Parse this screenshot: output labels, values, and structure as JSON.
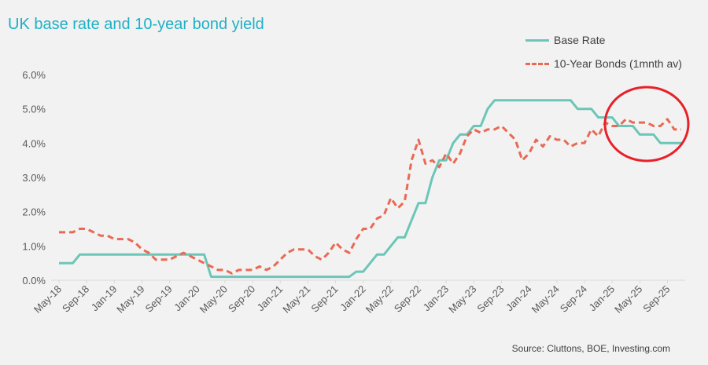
{
  "colors": {
    "base_rate": "#6cc6b7",
    "bonds": "#e86a54",
    "title": "#1fb0c6",
    "highlight": "#e8202a",
    "axis": "#d9d9d9",
    "text": "#595959"
  },
  "chart_data": {
    "type": "line",
    "title": "UK base rate and 10-year bond yield",
    "xlabel": "",
    "ylabel": "",
    "ylim": [
      0,
      6
    ],
    "y_ticks": [
      "0.0%",
      "1.0%",
      "2.0%",
      "3.0%",
      "4.0%",
      "5.0%",
      "6.0%"
    ],
    "x_ticks": [
      {
        "label": "May-18",
        "index": 0
      },
      {
        "label": "Sep-18",
        "index": 4
      },
      {
        "label": "Jan-19",
        "index": 8
      },
      {
        "label": "May-19",
        "index": 12
      },
      {
        "label": "Sep-19",
        "index": 16
      },
      {
        "label": "Jan-20",
        "index": 20
      },
      {
        "label": "May-20",
        "index": 24
      },
      {
        "label": "Sep-20",
        "index": 28
      },
      {
        "label": "Jan-21",
        "index": 32
      },
      {
        "label": "May-21",
        "index": 36
      },
      {
        "label": "Sep-21",
        "index": 40
      },
      {
        "label": "Jan-22",
        "index": 44
      },
      {
        "label": "May-22",
        "index": 48
      },
      {
        "label": "Sep-22",
        "index": 52
      },
      {
        "label": "Jan-23",
        "index": 56
      },
      {
        "label": "May-23",
        "index": 60
      },
      {
        "label": "Sep-23",
        "index": 64
      },
      {
        "label": "Jan-24",
        "index": 68
      },
      {
        "label": "May-24",
        "index": 72
      },
      {
        "label": "Sep-24",
        "index": 76
      },
      {
        "label": "Jan-25",
        "index": 80
      },
      {
        "label": "May-25",
        "index": 84
      },
      {
        "label": "Sep-25",
        "index": 88
      }
    ],
    "x_count": 91,
    "legend": "top-right",
    "grid": false,
    "series": [
      {
        "name": "Base Rate",
        "style": "solid",
        "values": [
          0.5,
          0.5,
          0.5,
          0.75,
          0.75,
          0.75,
          0.75,
          0.75,
          0.75,
          0.75,
          0.75,
          0.75,
          0.75,
          0.75,
          0.75,
          0.75,
          0.75,
          0.75,
          0.75,
          0.75,
          0.75,
          0.75,
          0.1,
          0.1,
          0.1,
          0.1,
          0.1,
          0.1,
          0.1,
          0.1,
          0.1,
          0.1,
          0.1,
          0.1,
          0.1,
          0.1,
          0.1,
          0.1,
          0.1,
          0.1,
          0.1,
          0.1,
          0.1,
          0.25,
          0.25,
          0.5,
          0.75,
          0.75,
          1.0,
          1.25,
          1.25,
          1.75,
          2.25,
          2.25,
          3.0,
          3.5,
          3.5,
          4.0,
          4.25,
          4.25,
          4.5,
          4.5,
          5.0,
          5.25,
          5.25,
          5.25,
          5.25,
          5.25,
          5.25,
          5.25,
          5.25,
          5.25,
          5.25,
          5.25,
          5.25,
          5.0,
          5.0,
          5.0,
          4.75,
          4.75,
          4.75,
          4.5,
          4.5,
          4.5,
          4.25,
          4.25,
          4.25,
          4.0,
          4.0,
          4.0,
          4.0
        ]
      },
      {
        "name": "10-Year Bonds (1mnth av)",
        "style": "dashed",
        "values": [
          1.4,
          1.4,
          1.4,
          1.5,
          1.5,
          1.4,
          1.3,
          1.3,
          1.2,
          1.2,
          1.2,
          1.1,
          0.9,
          0.8,
          0.6,
          0.6,
          0.6,
          0.7,
          0.8,
          0.7,
          0.6,
          0.5,
          0.4,
          0.3,
          0.3,
          0.2,
          0.3,
          0.3,
          0.3,
          0.4,
          0.3,
          0.4,
          0.6,
          0.8,
          0.9,
          0.9,
          0.9,
          0.7,
          0.6,
          0.8,
          1.1,
          0.9,
          0.8,
          1.2,
          1.5,
          1.5,
          1.8,
          1.9,
          2.4,
          2.1,
          2.3,
          3.5,
          4.1,
          3.4,
          3.5,
          3.3,
          3.7,
          3.4,
          3.7,
          4.2,
          4.4,
          4.3,
          4.4,
          4.4,
          4.5,
          4.3,
          4.1,
          3.5,
          3.7,
          4.1,
          3.9,
          4.2,
          4.1,
          4.1,
          3.9,
          4.0,
          4.0,
          4.4,
          4.2,
          4.6,
          4.5,
          4.5,
          4.7,
          4.6,
          4.6,
          4.6,
          4.5,
          4.5,
          4.7,
          4.4,
          4.4
        ]
      }
    ]
  },
  "source_text": "Source: Cluttons,  BOE, Investing.com"
}
